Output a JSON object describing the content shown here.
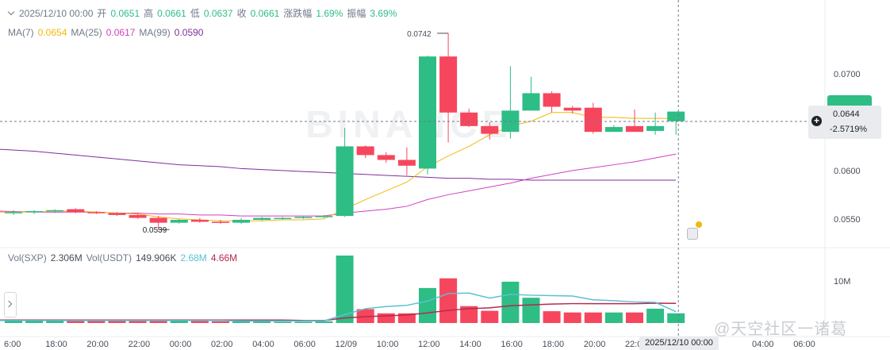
{
  "watermark_logo": "BINANCE",
  "legend": {
    "date": "2025/12/10 00:00",
    "open_label": "开",
    "open": "0.0651",
    "high_label": "高",
    "high": "0.0661",
    "low_label": "低",
    "low": "0.0637",
    "close_label": "收",
    "close": "0.0661",
    "change_label": "涨跌幅",
    "change": "1.69%",
    "amplitude_label": "振幅",
    "amplitude": "3.69%"
  },
  "ma_legend": {
    "ma7_label": "MA(7)",
    "ma7": "0.0654",
    "ma25_label": "MA(25)",
    "ma25": "0.0617",
    "ma99_label": "MA(99)",
    "ma99": "0.0590"
  },
  "vol_legend": {
    "vol_label": "Vol(SXP)",
    "vol": "2.306M",
    "vol_usdt_label": "Vol(USDT)",
    "vol_usdt": "149.906K",
    "ma_a": "2.68M",
    "ma_b": "4.66M"
  },
  "price_tag": {
    "price": "0.0644",
    "change": "-2.5719%"
  },
  "time_tag": "2025/12/10 00:00",
  "watermark_text": "@天空社区一诸葛",
  "colors": {
    "up": "#2ebd85",
    "down": "#f6465d",
    "ma7": "#f0b90b",
    "ma25": "#d33fc0",
    "ma99": "#7d2f9b",
    "vol_ma_a": "#5ac0d4",
    "vol_ma_b": "#b5294e"
  },
  "chart_data": {
    "type": "candlestick",
    "interval": "2h",
    "price_axis": {
      "ticks": [
        "0.0700",
        "0.0650",
        "0.0600",
        "0.0550"
      ],
      "range": [
        0.0526,
        0.076
      ]
    },
    "volume_axis": {
      "ticks": [
        "10M"
      ],
      "range": [
        0,
        16
      ]
    },
    "x_ticks": [
      "6:00",
      "18:00",
      "20:00",
      "22:00",
      "00:00",
      "02:00",
      "04:00",
      "06:00",
      "12/09",
      "10:00",
      "12:00",
      "14:00",
      "16:00",
      "18:00",
      "20:00",
      "22:00",
      "04:00",
      "06:00"
    ],
    "candles": [
      {
        "o": 0.0556,
        "h": 0.0559,
        "l": 0.0554,
        "c": 0.0557,
        "v": 0.6
      },
      {
        "o": 0.0557,
        "h": 0.0559,
        "l": 0.0555,
        "c": 0.0558,
        "v": 0.6
      },
      {
        "o": 0.0558,
        "h": 0.056,
        "l": 0.0556,
        "c": 0.0559,
        "v": 0.6
      },
      {
        "o": 0.056,
        "h": 0.0561,
        "l": 0.0556,
        "c": 0.0557,
        "v": 0.5
      },
      {
        "o": 0.0557,
        "h": 0.0558,
        "l": 0.0555,
        "c": 0.0556,
        "v": 0.5
      },
      {
        "o": 0.0556,
        "h": 0.0557,
        "l": 0.0553,
        "c": 0.0554,
        "v": 0.5
      },
      {
        "o": 0.0554,
        "h": 0.0555,
        "l": 0.055,
        "c": 0.0551,
        "v": 0.6
      },
      {
        "o": 0.0551,
        "h": 0.0553,
        "l": 0.0539,
        "c": 0.0546,
        "v": 0.7
      },
      {
        "o": 0.0546,
        "h": 0.055,
        "l": 0.0545,
        "c": 0.0549,
        "v": 0.5
      },
      {
        "o": 0.0549,
        "h": 0.0551,
        "l": 0.0546,
        "c": 0.0547,
        "v": 0.5
      },
      {
        "o": 0.0547,
        "h": 0.0549,
        "l": 0.0545,
        "c": 0.0546,
        "v": 0.4
      },
      {
        "o": 0.0546,
        "h": 0.0551,
        "l": 0.0545,
        "c": 0.0549,
        "v": 0.4
      },
      {
        "o": 0.0549,
        "h": 0.0552,
        "l": 0.0548,
        "c": 0.0551,
        "v": 0.4
      },
      {
        "o": 0.0551,
        "h": 0.0552,
        "l": 0.0549,
        "c": 0.0551,
        "v": 0.3
      },
      {
        "o": 0.0551,
        "h": 0.0553,
        "l": 0.055,
        "c": 0.0552,
        "v": 0.3
      },
      {
        "o": 0.0552,
        "h": 0.0554,
        "l": 0.0551,
        "c": 0.0553,
        "v": 0.4
      },
      {
        "o": 0.0553,
        "h": 0.0644,
        "l": 0.0552,
        "c": 0.0625,
        "v": 16.0
      },
      {
        "o": 0.0625,
        "h": 0.0626,
        "l": 0.0613,
        "c": 0.0616,
        "v": 3.3
      },
      {
        "o": 0.0616,
        "h": 0.0619,
        "l": 0.0608,
        "c": 0.0611,
        "v": 2.3
      },
      {
        "o": 0.0611,
        "h": 0.0624,
        "l": 0.0595,
        "c": 0.0605,
        "v": 2.3
      },
      {
        "o": 0.0602,
        "h": 0.0719,
        "l": 0.0596,
        "c": 0.0718,
        "v": 8.3
      },
      {
        "o": 0.0718,
        "h": 0.0742,
        "l": 0.0629,
        "c": 0.066,
        "v": 10.6
      },
      {
        "o": 0.066,
        "h": 0.0664,
        "l": 0.0645,
        "c": 0.0646,
        "v": 4.0
      },
      {
        "o": 0.0646,
        "h": 0.065,
        "l": 0.0632,
        "c": 0.0638,
        "v": 2.9
      },
      {
        "o": 0.064,
        "h": 0.0708,
        "l": 0.0633,
        "c": 0.0662,
        "v": 9.8
      },
      {
        "o": 0.0662,
        "h": 0.0697,
        "l": 0.0664,
        "c": 0.068,
        "v": 6.0
      },
      {
        "o": 0.068,
        "h": 0.0682,
        "l": 0.066,
        "c": 0.0666,
        "v": 2.8
      },
      {
        "o": 0.0665,
        "h": 0.0667,
        "l": 0.0659,
        "c": 0.0662,
        "v": 2.5
      },
      {
        "o": 0.0665,
        "h": 0.067,
        "l": 0.0638,
        "c": 0.064,
        "v": 2.5
      },
      {
        "o": 0.064,
        "h": 0.0647,
        "l": 0.064,
        "c": 0.0645,
        "v": 2.5
      },
      {
        "o": 0.0646,
        "h": 0.0663,
        "l": 0.064,
        "c": 0.064,
        "v": 2.5
      },
      {
        "o": 0.0641,
        "h": 0.066,
        "l": 0.0637,
        "c": 0.0646,
        "v": 3.4
      },
      {
        "o": 0.0651,
        "h": 0.0661,
        "l": 0.0637,
        "c": 0.0661,
        "v": 2.3
      }
    ],
    "low_annotation": "0.0539",
    "high_annotation": "0.0742",
    "ma7": [
      0.0557,
      0.0557,
      0.0558,
      0.0558,
      0.0557,
      0.0556,
      0.0555,
      0.0552,
      0.055,
      0.0549,
      0.0548,
      0.0548,
      0.0548,
      0.0549,
      0.0549,
      0.055,
      0.056,
      0.057,
      0.0579,
      0.0588,
      0.0604,
      0.0615,
      0.0625,
      0.0637,
      0.0646,
      0.0651,
      0.066,
      0.066,
      0.0655,
      0.0655,
      0.0654,
      0.0654,
      0.0654
    ],
    "ma25": [
      0.0558,
      0.0557,
      0.0557,
      0.0557,
      0.0557,
      0.0556,
      0.0556,
      0.0555,
      0.0555,
      0.0554,
      0.0554,
      0.0553,
      0.0553,
      0.0553,
      0.0553,
      0.0553,
      0.0556,
      0.0558,
      0.056,
      0.0563,
      0.057,
      0.0575,
      0.0579,
      0.0583,
      0.0587,
      0.0592,
      0.0596,
      0.06,
      0.0603,
      0.0606,
      0.0609,
      0.0613,
      0.0617
    ],
    "ma99": [
      0.0622,
      0.062,
      0.0618,
      0.0616,
      0.0614,
      0.0612,
      0.061,
      0.0608,
      0.0606,
      0.0605,
      0.0604,
      0.0602,
      0.0601,
      0.06,
      0.0599,
      0.0598,
      0.0597,
      0.0596,
      0.0595,
      0.0594,
      0.0593,
      0.0592,
      0.0592,
      0.0591,
      0.0591,
      0.059,
      0.059,
      0.059,
      0.059,
      0.059,
      0.059,
      0.059,
      0.059
    ],
    "vol_ma_a": [
      0.6,
      0.6,
      0.6,
      0.6,
      0.6,
      0.6,
      0.6,
      0.6,
      0.6,
      0.6,
      0.6,
      0.5,
      0.5,
      0.5,
      0.5,
      0.5,
      2.0,
      3.4,
      3.9,
      4.2,
      5.2,
      7.0,
      7.1,
      5.9,
      6.8,
      6.6,
      6.5,
      6.4,
      5.5,
      5.3,
      5.0,
      4.9,
      2.68
    ],
    "vol_ma_b": [
      0.7,
      0.7,
      0.7,
      0.7,
      0.7,
      0.7,
      0.7,
      0.7,
      0.7,
      0.7,
      0.7,
      0.7,
      0.7,
      0.7,
      0.6,
      0.6,
      1.2,
      1.5,
      1.7,
      1.9,
      2.4,
      3.0,
      3.4,
      3.6,
      4.1,
      4.3,
      4.5,
      4.6,
      4.6,
      4.6,
      4.6,
      4.7,
      4.66
    ]
  }
}
